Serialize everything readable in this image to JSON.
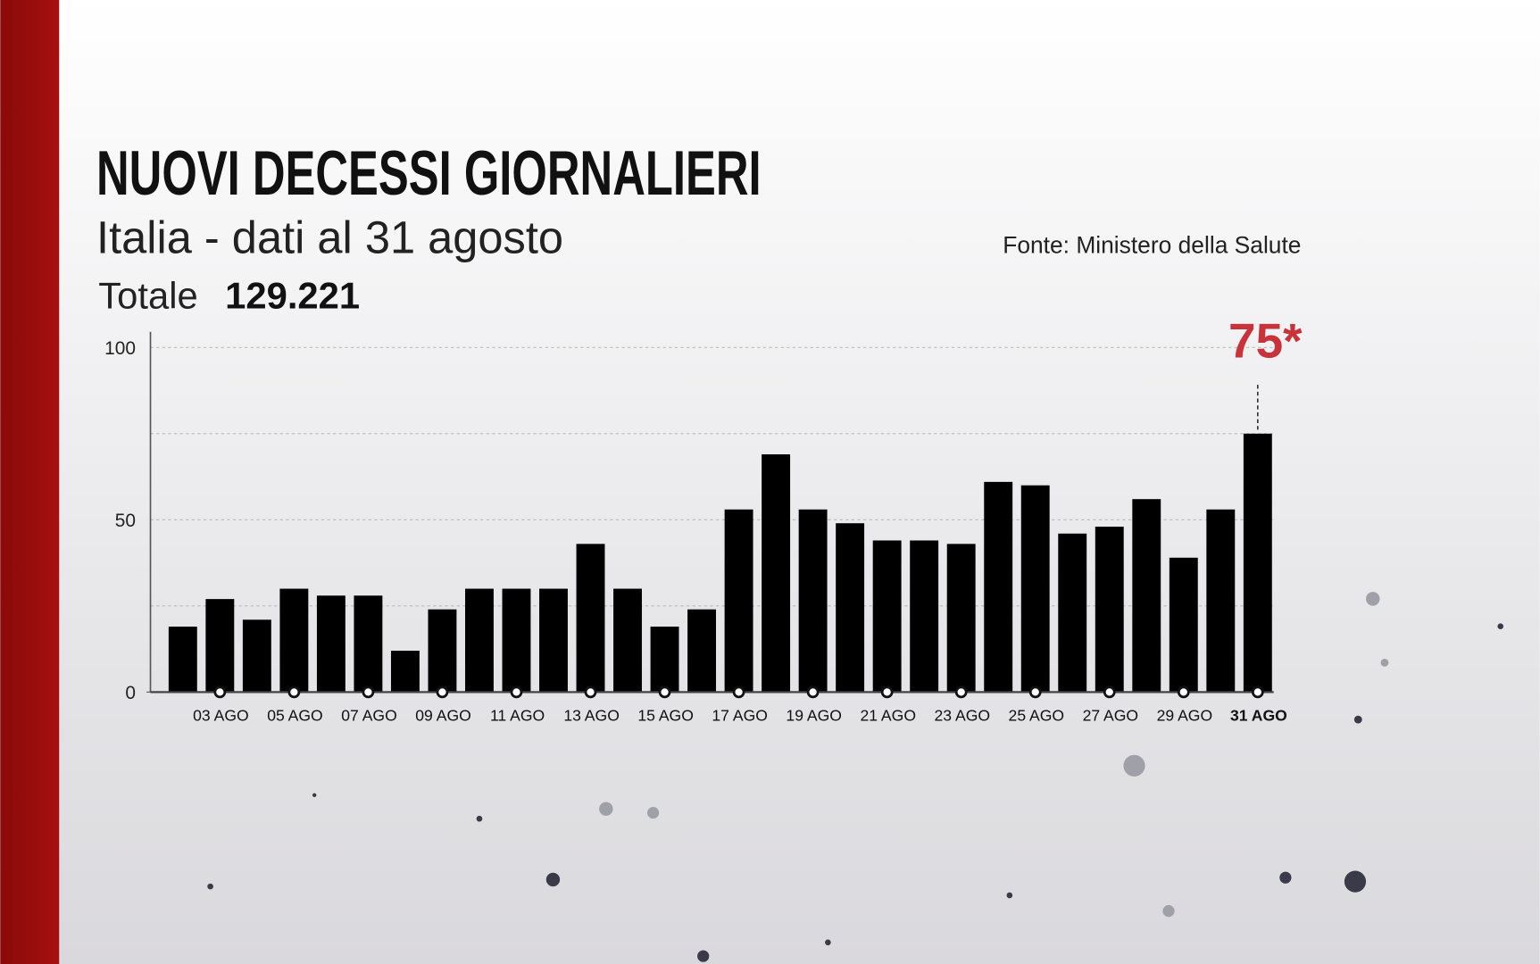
{
  "chart_data": {
    "type": "bar",
    "title": "NUOVI DECESSI GIORNALIERI",
    "subtitle": "Italia - dati al 31 agosto",
    "total_label": "Totale",
    "total_value": "129.221",
    "source": "Fonte: Ministero della Salute",
    "annotation": "75*",
    "categories": [
      null,
      "03 AGO",
      null,
      "05 AGO",
      null,
      "07 AGO",
      null,
      "09 AGO",
      null,
      "11 AGO",
      null,
      "13 AGO",
      null,
      "15 AGO",
      null,
      "17 AGO",
      null,
      "19 AGO",
      null,
      "21 AGO",
      null,
      "23 AGO",
      null,
      "25 AGO",
      null,
      "27 AGO",
      null,
      "29 AGO",
      null,
      "31 AGO"
    ],
    "values": [
      19,
      27,
      21,
      30,
      28,
      28,
      12,
      24,
      30,
      30,
      30,
      43,
      30,
      19,
      24,
      53,
      69,
      53,
      49,
      44,
      44,
      43,
      61,
      60,
      46,
      48,
      56,
      39,
      53,
      75
    ],
    "color": "#000000",
    "annotation_color": "#c8323a",
    "ylim": [
      0,
      100
    ],
    "yticks": [
      0,
      50,
      100
    ],
    "minor_grid": [
      25,
      75
    ],
    "grid": true
  }
}
